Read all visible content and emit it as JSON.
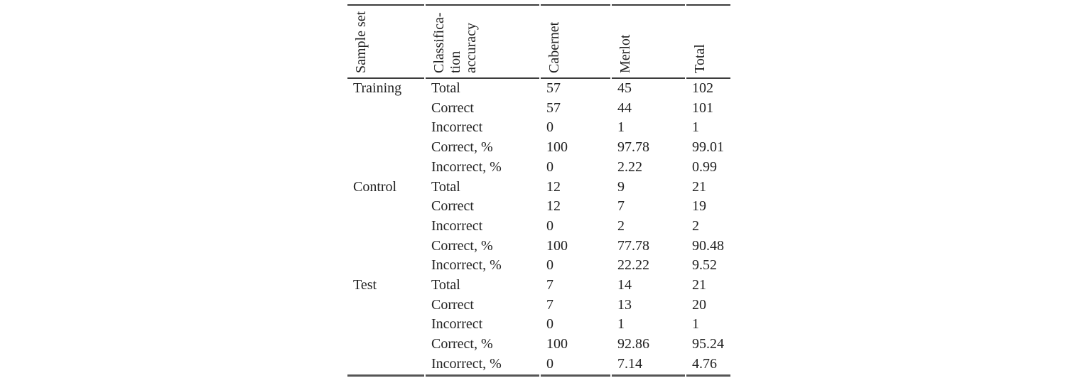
{
  "table": {
    "headers": {
      "sample_set": "Sample set",
      "classification_accuracy": "Classifica-\ntion\naccuracy",
      "cabernet": "Cabernet",
      "merlot": "Merlot",
      "total": "Total"
    },
    "groups": [
      {
        "label": "Training",
        "rows": [
          {
            "metric": "Total",
            "cabernet": "57",
            "merlot": "45",
            "total": "102"
          },
          {
            "metric": "Correct",
            "cabernet": "57",
            "merlot": "44",
            "total": "101"
          },
          {
            "metric": "Incorrect",
            "cabernet": "0",
            "merlot": "1",
            "total": "1"
          },
          {
            "metric": "Correct, %",
            "cabernet": "100",
            "merlot": "97.78",
            "total": "99.01"
          },
          {
            "metric": "Incorrect, %",
            "cabernet": "0",
            "merlot": "2.22",
            "total": "0.99"
          }
        ]
      },
      {
        "label": "Control",
        "rows": [
          {
            "metric": "Total",
            "cabernet": "12",
            "merlot": "9",
            "total": "21"
          },
          {
            "metric": "Correct",
            "cabernet": "12",
            "merlot": "7",
            "total": "19"
          },
          {
            "metric": "Incorrect",
            "cabernet": "0",
            "merlot": "2",
            "total": "2"
          },
          {
            "metric": "Correct, %",
            "cabernet": "100",
            "merlot": "77.78",
            "total": "90.48"
          },
          {
            "metric": "Incorrect, %",
            "cabernet": "0",
            "merlot": "22.22",
            "total": "9.52"
          }
        ]
      },
      {
        "label": "Test",
        "rows": [
          {
            "metric": "Total",
            "cabernet": "7",
            "merlot": "14",
            "total": "21"
          },
          {
            "metric": "Correct",
            "cabernet": "7",
            "merlot": "13",
            "total": "20"
          },
          {
            "metric": "Incorrect",
            "cabernet": "0",
            "merlot": "1",
            "total": "1"
          },
          {
            "metric": "Correct, %",
            "cabernet": "100",
            "merlot": "92.86",
            "total": "95.24"
          },
          {
            "metric": "Incorrect, %",
            "cabernet": "0",
            "merlot": "7.14",
            "total": "4.76"
          }
        ]
      }
    ],
    "colors": {
      "text": "#222222",
      "rule_top_mid": "#3c3c3c",
      "rule_bottom": "#555555",
      "background": "#ffffff"
    }
  }
}
